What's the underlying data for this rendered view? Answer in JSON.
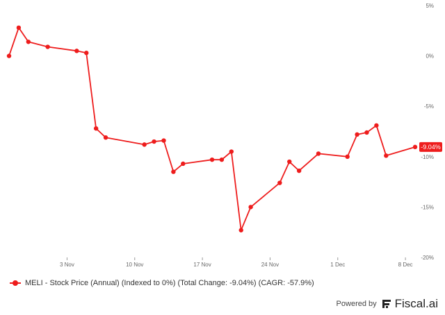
{
  "chart_data": {
    "type": "line",
    "series": [
      {
        "name": "MELI - Stock Price (Annual) (Indexed to 0%) (Total Change: -9.04%) (CAGR: -57.9%)",
        "color": "#ee1c1c",
        "points": [
          {
            "x": "2024-10-28",
            "y": 0
          },
          {
            "x": "2024-10-29",
            "y": 2.8
          },
          {
            "x": "2024-10-30",
            "y": 1.4
          },
          {
            "x": "2024-11-01",
            "y": 0.9
          },
          {
            "x": "2024-11-04",
            "y": 0.5
          },
          {
            "x": "2024-11-05",
            "y": 0.3
          },
          {
            "x": "2024-11-06",
            "y": -7.2
          },
          {
            "x": "2024-11-07",
            "y": -8.1
          },
          {
            "x": "2024-11-11",
            "y": -8.8
          },
          {
            "x": "2024-11-12",
            "y": -8.5
          },
          {
            "x": "2024-11-13",
            "y": -8.4
          },
          {
            "x": "2024-11-14",
            "y": -11.5
          },
          {
            "x": "2024-11-15",
            "y": -10.7
          },
          {
            "x": "2024-11-18",
            "y": -10.3
          },
          {
            "x": "2024-11-19",
            "y": -10.3
          },
          {
            "x": "2024-11-20",
            "y": -9.5
          },
          {
            "x": "2024-11-21",
            "y": -17.3
          },
          {
            "x": "2024-11-22",
            "y": -15
          },
          {
            "x": "2024-11-25",
            "y": -12.6
          },
          {
            "x": "2024-11-26",
            "y": -10.5
          },
          {
            "x": "2024-11-27",
            "y": -11.4
          },
          {
            "x": "2024-11-29",
            "y": -9.7
          },
          {
            "x": "2024-12-02",
            "y": -10
          },
          {
            "x": "2024-12-03",
            "y": -7.8
          },
          {
            "x": "2024-12-04",
            "y": -7.6
          },
          {
            "x": "2024-12-05",
            "y": -6.9
          },
          {
            "x": "2024-12-06",
            "y": -9.9
          },
          {
            "x": "2024-12-09",
            "y": -9.04
          }
        ]
      }
    ],
    "x_ticks": [
      {
        "x": "2024-11-03",
        "label": "3 Nov"
      },
      {
        "x": "2024-11-10",
        "label": "10 Nov"
      },
      {
        "x": "2024-11-17",
        "label": "17 Nov"
      },
      {
        "x": "2024-11-24",
        "label": "24 Nov"
      },
      {
        "x": "2024-12-01",
        "label": "1 Dec"
      },
      {
        "x": "2024-12-08",
        "label": "8 Dec"
      }
    ],
    "y_ticks": [
      {
        "value": 5,
        "label": "5%"
      },
      {
        "value": 0,
        "label": "0%"
      },
      {
        "value": -5,
        "label": "-5%"
      },
      {
        "value": -10,
        "label": "-10%"
      },
      {
        "value": -15,
        "label": "-15%"
      },
      {
        "value": -20,
        "label": "-20%"
      }
    ],
    "ylim": [
      -20,
      5
    ],
    "xlim": [
      "2024-10-28",
      "2024-12-09"
    ],
    "y_axis_side": "right",
    "grid": false,
    "end_label": "-9.04%",
    "legend_position": "bottom-left"
  },
  "legend": {
    "label": "MELI - Stock Price (Annual) (Indexed to 0%) (Total Change: -9.04%) (CAGR: -57.9%)"
  },
  "footer": {
    "powered_by": "Powered by",
    "brand": "Fiscal.ai",
    "logo_icon": "fiscal-ai-logo-icon"
  }
}
